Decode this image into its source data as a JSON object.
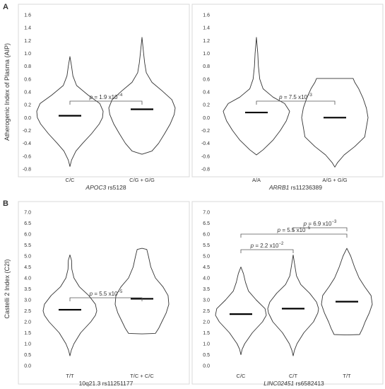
{
  "section_labels": [
    "A",
    "B"
  ],
  "chart_data": [
    {
      "type": "violin",
      "section": "A",
      "ylabel": "Atherogenic Index of Plasma (AIP)",
      "ylim": [
        -0.8,
        1.6
      ],
      "yticks": [
        "-0.8",
        "-0.6",
        "-0.4",
        "-0.2",
        "0.0",
        "0.2",
        "0.4",
        "0.6",
        "0.8",
        "1.0",
        "1.2",
        "1.4",
        "1.6"
      ],
      "xlabel": {
        "gene": "APOC3",
        "snp": " rs5128"
      },
      "categories": [
        "C/C",
        "C/G + G/G"
      ],
      "violins": [
        {
          "category": "C/C",
          "median": 0.03,
          "min": -0.76,
          "max": 0.95,
          "profile": [
            [
              -0.76,
              0.0
            ],
            [
              -0.66,
              0.05
            ],
            [
              -0.52,
              0.18
            ],
            [
              -0.4,
              0.38
            ],
            [
              -0.25,
              0.65
            ],
            [
              -0.1,
              0.88
            ],
            [
              0.0,
              0.98
            ],
            [
              0.1,
              1.0
            ],
            [
              0.22,
              0.9
            ],
            [
              0.35,
              0.55
            ],
            [
              0.5,
              0.2
            ],
            [
              0.65,
              0.09
            ],
            [
              0.8,
              0.05
            ],
            [
              0.95,
              0.0
            ]
          ]
        },
        {
          "category": "C/G + G/G",
          "median": 0.13,
          "min": -0.57,
          "max": 1.25,
          "profile": [
            [
              -0.57,
              0.0
            ],
            [
              -0.52,
              0.3
            ],
            [
              -0.4,
              0.5
            ],
            [
              -0.25,
              0.68
            ],
            [
              -0.1,
              0.85
            ],
            [
              0.05,
              0.97
            ],
            [
              0.15,
              1.0
            ],
            [
              0.28,
              0.9
            ],
            [
              0.42,
              0.6
            ],
            [
              0.55,
              0.3
            ],
            [
              0.7,
              0.13
            ],
            [
              0.85,
              0.08
            ],
            [
              1.0,
              0.05
            ],
            [
              1.25,
              0.0
            ]
          ]
        }
      ],
      "comparisons": [
        {
          "from": 0,
          "to": 1,
          "p": "1.9",
          "exp": "−4"
        }
      ]
    },
    {
      "type": "violin",
      "section": "A",
      "ylabel": "",
      "ylim": [
        -0.8,
        1.6
      ],
      "yticks": [
        "-0.8",
        "-0.6",
        "-0.4",
        "-0.2",
        "0.0",
        "0.2",
        "0.4",
        "0.6",
        "0.8",
        "1.0",
        "1.2",
        "1.4",
        "1.6"
      ],
      "xlabel": {
        "gene": "ARRB1",
        "snp": " rs11236389"
      },
      "categories": [
        "A/A",
        "A/G + G/G"
      ],
      "violins": [
        {
          "category": "A/A",
          "median": 0.08,
          "min": -0.58,
          "max": 1.25,
          "profile": [
            [
              -0.58,
              0.0
            ],
            [
              -0.5,
              0.2
            ],
            [
              -0.35,
              0.5
            ],
            [
              -0.2,
              0.72
            ],
            [
              -0.05,
              0.9
            ],
            [
              0.05,
              0.97
            ],
            [
              0.1,
              1.0
            ],
            [
              0.22,
              0.85
            ],
            [
              0.32,
              0.5
            ],
            [
              0.45,
              0.2
            ],
            [
              0.6,
              0.1
            ],
            [
              0.8,
              0.06
            ],
            [
              1.0,
              0.04
            ],
            [
              1.25,
              0.0
            ]
          ]
        },
        {
          "category": "A/G + G/G",
          "median": 0.0,
          "min": -0.77,
          "max": 0.61,
          "profile": [
            [
              -0.77,
              0.0
            ],
            [
              -0.7,
              0.08
            ],
            [
              -0.58,
              0.28
            ],
            [
              -0.45,
              0.6
            ],
            [
              -0.3,
              0.9
            ],
            [
              -0.15,
              0.95
            ],
            [
              0.0,
              1.0
            ],
            [
              0.15,
              0.95
            ],
            [
              0.3,
              0.85
            ],
            [
              0.45,
              0.72
            ],
            [
              0.55,
              0.6
            ],
            [
              0.61,
              0.55
            ]
          ]
        }
      ],
      "comparisons": [
        {
          "from": 0,
          "to": 1,
          "p": "7.5",
          "exp": "−3"
        }
      ]
    },
    {
      "type": "violin",
      "section": "B",
      "ylabel": "Castelli 2 Index (C2I)",
      "ylim": [
        0.0,
        7.0
      ],
      "yticks": [
        "0.0",
        "0.5",
        "1.0",
        "1.5",
        "2.0",
        "2.5",
        "3.0",
        "3.5",
        "4.0",
        "4.5",
        "5.0",
        "5.5",
        "6.0",
        "6.5",
        "7.0"
      ],
      "xlabel": {
        "gene": "",
        "snp": "10q21.3 rs11251177"
      },
      "categories": [
        "T/T",
        "T/C + C/C"
      ],
      "violins": [
        {
          "category": "T/T",
          "median": 2.55,
          "min": 0.45,
          "max": 5.05,
          "profile": [
            [
              0.45,
              0.0
            ],
            [
              0.7,
              0.05
            ],
            [
              1.0,
              0.15
            ],
            [
              1.5,
              0.4
            ],
            [
              2.0,
              0.78
            ],
            [
              2.3,
              0.95
            ],
            [
              2.5,
              1.0
            ],
            [
              2.8,
              0.95
            ],
            [
              3.2,
              0.7
            ],
            [
              3.6,
              0.35
            ],
            [
              4.0,
              0.15
            ],
            [
              4.4,
              0.07
            ],
            [
              4.8,
              0.06
            ],
            [
              5.05,
              0.0
            ]
          ]
        },
        {
          "category": "T/C + C/C",
          "median": 3.05,
          "min": 1.45,
          "max": 5.35,
          "profile": [
            [
              1.45,
              0.0
            ],
            [
              1.47,
              0.5
            ],
            [
              1.7,
              0.62
            ],
            [
              2.0,
              0.74
            ],
            [
              2.4,
              0.9
            ],
            [
              2.8,
              1.0
            ],
            [
              3.2,
              0.97
            ],
            [
              3.6,
              0.78
            ],
            [
              4.0,
              0.5
            ],
            [
              4.5,
              0.33
            ],
            [
              5.0,
              0.24
            ],
            [
              5.3,
              0.18
            ],
            [
              5.35,
              0.0
            ]
          ]
        }
      ],
      "comparisons": [
        {
          "from": 0,
          "to": 1,
          "p": "5.5",
          "exp": "−5",
          "level": 0
        }
      ]
    },
    {
      "type": "violin",
      "section": "B",
      "ylabel": "",
      "ylim": [
        0.0,
        7.0
      ],
      "yticks": [
        "0.0",
        "0.5",
        "1.0",
        "1.5",
        "2.0",
        "2.5",
        "3.0",
        "3.5",
        "4.0",
        "4.5",
        "5.0",
        "5.5",
        "6.0",
        "6.5",
        "7.0"
      ],
      "xlabel": {
        "gene": "LINC02451",
        "snp": " rs6582413"
      },
      "categories": [
        "C/C",
        "C/T",
        "T/T"
      ],
      "violins": [
        {
          "category": "C/C",
          "median": 2.35,
          "min": 0.5,
          "max": 4.5,
          "profile": [
            [
              0.5,
              0.0
            ],
            [
              0.75,
              0.05
            ],
            [
              1.0,
              0.15
            ],
            [
              1.5,
              0.45
            ],
            [
              2.0,
              0.85
            ],
            [
              2.3,
              1.0
            ],
            [
              2.6,
              0.95
            ],
            [
              3.0,
              0.6
            ],
            [
              3.4,
              0.3
            ],
            [
              3.8,
              0.18
            ],
            [
              4.2,
              0.1
            ],
            [
              4.5,
              0.0
            ]
          ]
        },
        {
          "category": "C/T",
          "median": 2.6,
          "min": 0.45,
          "max": 5.05,
          "profile": [
            [
              0.45,
              0.0
            ],
            [
              0.7,
              0.05
            ],
            [
              1.0,
              0.15
            ],
            [
              1.5,
              0.42
            ],
            [
              2.0,
              0.8
            ],
            [
              2.4,
              0.97
            ],
            [
              2.6,
              1.0
            ],
            [
              2.9,
              0.92
            ],
            [
              3.3,
              0.65
            ],
            [
              3.7,
              0.3
            ],
            [
              4.1,
              0.13
            ],
            [
              4.6,
              0.06
            ],
            [
              5.05,
              0.0
            ]
          ]
        },
        {
          "category": "T/T",
          "median": 2.92,
          "min": 1.4,
          "max": 5.35,
          "profile": [
            [
              1.4,
              0.0
            ],
            [
              1.42,
              0.5
            ],
            [
              1.7,
              0.62
            ],
            [
              2.0,
              0.72
            ],
            [
              2.4,
              0.88
            ],
            [
              2.8,
              1.0
            ],
            [
              3.2,
              0.95
            ],
            [
              3.6,
              0.7
            ],
            [
              4.0,
              0.48
            ],
            [
              4.5,
              0.3
            ],
            [
              5.0,
              0.15
            ],
            [
              5.35,
              0.0
            ]
          ]
        }
      ],
      "comparisons": [
        {
          "from": 0,
          "to": 1,
          "p": "2.2",
          "exp": "−2",
          "level": 0
        },
        {
          "from": 0,
          "to": 2,
          "p": "5.5",
          "exp": "−5",
          "level": 1
        },
        {
          "from": 1,
          "to": 2,
          "p": "6.9",
          "exp": "−3",
          "level": 2
        }
      ]
    }
  ]
}
